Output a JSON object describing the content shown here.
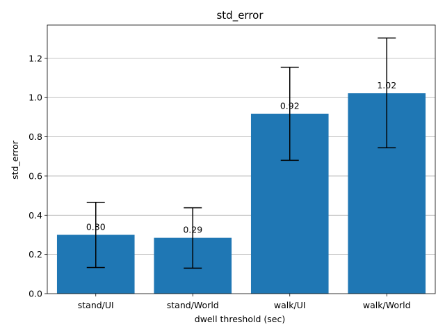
{
  "chart_data": {
    "type": "bar",
    "title": "std_error",
    "xlabel": "dwell threshold (sec)",
    "ylabel": "std_error",
    "categories": [
      "stand/UI",
      "stand/World",
      "walk/UI",
      "walk/World"
    ],
    "values": [
      0.3,
      0.285,
      0.917,
      1.022
    ],
    "value_labels": [
      "0.30",
      "0.29",
      "0.92",
      "1.02"
    ],
    "error_low": [
      0.133,
      0.13,
      0.68,
      0.744
    ],
    "error_high": [
      0.466,
      0.438,
      1.155,
      1.304
    ],
    "ylim": [
      0,
      1.37
    ],
    "yticks": [
      0.0,
      0.2,
      0.4,
      0.6,
      0.8,
      1.0,
      1.2
    ],
    "ytick_labels": [
      "0.0",
      "0.2",
      "0.4",
      "0.6",
      "0.8",
      "1.0",
      "1.2"
    ],
    "grid": "y",
    "colors": {
      "bar": "#1f77b4",
      "grid": "#b0b0b0",
      "error": "#000000"
    }
  }
}
